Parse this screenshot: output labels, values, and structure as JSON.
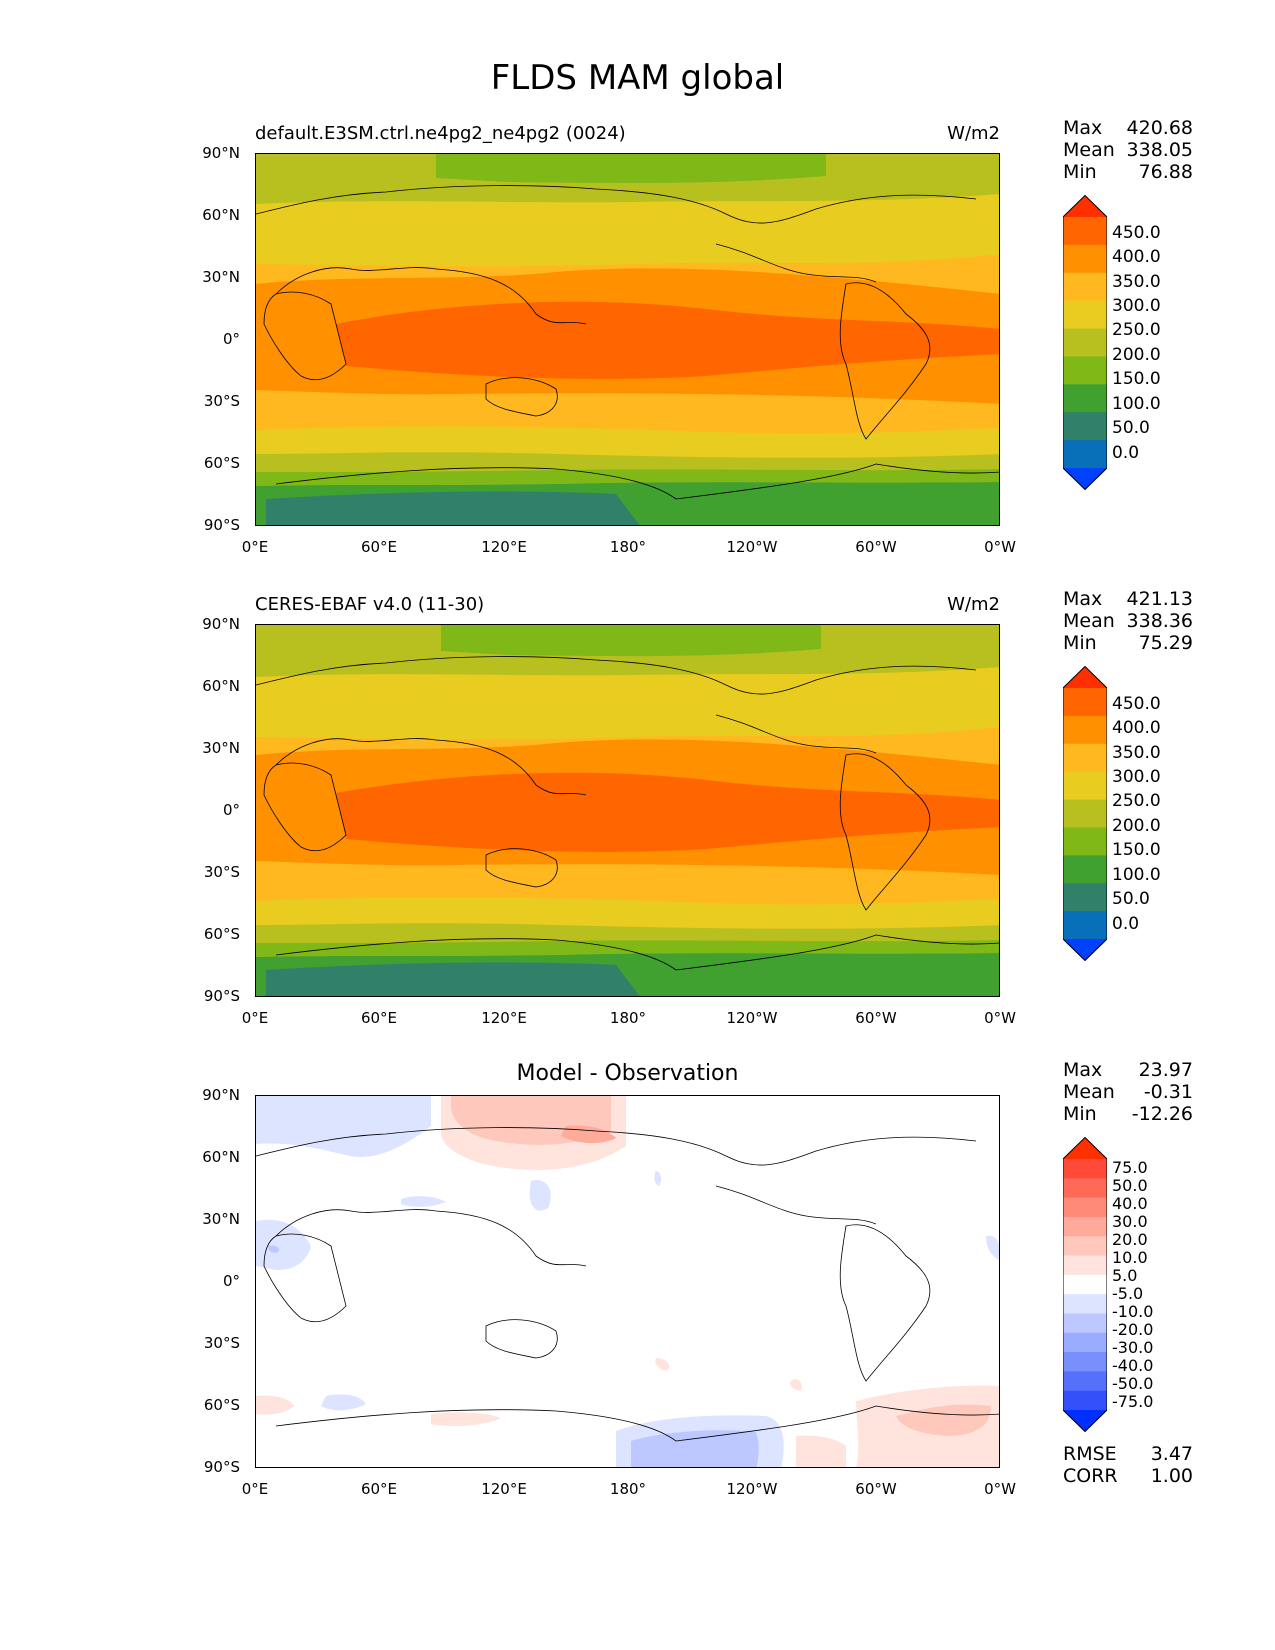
{
  "title": "FLDS MAM global",
  "x_ticks": [
    "0°E",
    "60°E",
    "120°E",
    "180°",
    "120°W",
    "60°W",
    "0°W"
  ],
  "y_ticks": [
    "90°N",
    "60°N",
    "30°N",
    "0°",
    "30°S",
    "60°S",
    "90°S"
  ],
  "panels": [
    {
      "title_left": "default.E3SM.ctrl.ne4pg2_ne4pg2 (0024)",
      "units": "W/m2",
      "stats": {
        "max_label": "Max",
        "max": "420.68",
        "mean_label": "Mean",
        "mean": "338.05",
        "min_label": "Min",
        "min": "76.88"
      },
      "colorbar": {
        "labels": [
          "450.0",
          "400.0",
          "350.0",
          "300.0",
          "250.0",
          "200.0",
          "150.0",
          "100.0",
          "50.0",
          "0.0"
        ],
        "colors": [
          "#ff3000",
          "#ff6600",
          "#ff9000",
          "#ffb820",
          "#e8cc20",
          "#b8c020",
          "#80b818",
          "#40a030",
          "#30806a",
          "#0870b8",
          "#0040ff"
        ]
      }
    },
    {
      "title_left": "CERES-EBAF v4.0 (11-30)",
      "units": "W/m2",
      "stats": {
        "max_label": "Max",
        "max": "421.13",
        "mean_label": "Mean",
        "mean": "338.36",
        "min_label": "Min",
        "min": "75.29"
      },
      "colorbar": {
        "labels": [
          "450.0",
          "400.0",
          "350.0",
          "300.0",
          "250.0",
          "200.0",
          "150.0",
          "100.0",
          "50.0",
          "0.0"
        ],
        "colors": [
          "#ff3000",
          "#ff6600",
          "#ff9000",
          "#ffb820",
          "#e8cc20",
          "#b8c020",
          "#80b818",
          "#40a030",
          "#30806a",
          "#0870b8",
          "#0040ff"
        ]
      }
    },
    {
      "title_center": "Model - Observation",
      "stats": {
        "max_label": "Max",
        "max": "23.97",
        "mean_label": "Mean",
        "mean": "-0.31",
        "min_label": "Min",
        "min": "-12.26"
      },
      "colorbar": {
        "labels": [
          "75.0",
          "50.0",
          "40.0",
          "30.0",
          "20.0",
          "10.0",
          "5.0",
          "-5.0",
          "-10.0",
          "-20.0",
          "-30.0",
          "-40.0",
          "-50.0",
          "-75.0"
        ],
        "colors": [
          "#ff3000",
          "#ff4a3a",
          "#ff6a58",
          "#ff8a78",
          "#ffaa9a",
          "#ffc8bc",
          "#ffe4de",
          "#ffffff",
          "#dde4ff",
          "#bcc8ff",
          "#9aacff",
          "#788ffc",
          "#5670fa",
          "#3450fa",
          "#0030ff"
        ]
      },
      "metrics": {
        "rmse_label": "RMSE",
        "rmse": "3.47",
        "corr_label": "CORR",
        "corr": "1.00"
      }
    }
  ]
}
